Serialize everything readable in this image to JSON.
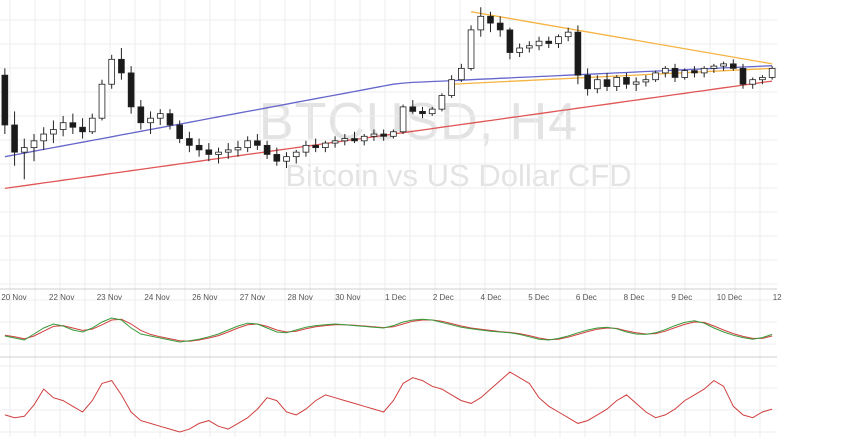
{
  "watermark": {
    "symbol": "BTCUSD, H4",
    "name": "Bitcoin vs US Dollar CFD"
  },
  "colors": {
    "up_candle": "#ffffff",
    "down_candle": "#1a1a1a",
    "wick": "#222222",
    "ma_short": "#6666cc",
    "ma_long": "#e05555",
    "trendline": "#f5b342",
    "stoch_k": "#3a9a3a",
    "stoch_d": "#d04040",
    "rsi": "#d04040",
    "grid": "#ececec",
    "separator": "#cfcfcf"
  },
  "chart_data": [
    {
      "type": "candlestick",
      "title": "",
      "x_ticks": [
        "20 Nov",
        "22 Nov",
        "23 Nov",
        "24 Nov",
        "26 Nov",
        "27 Nov",
        "28 Nov",
        "30 Nov",
        "1 Dec",
        "2 Dec",
        "4 Dec",
        "5 Dec",
        "6 Dec",
        "8 Dec",
        "9 Dec",
        "10 Dec",
        "12"
      ],
      "ohlc": [
        [
          8120,
          8150,
          7860,
          7900
        ],
        [
          7900,
          7960,
          7720,
          7780
        ],
        [
          7780,
          7840,
          7660,
          7800
        ],
        [
          7800,
          7860,
          7740,
          7830
        ],
        [
          7830,
          7890,
          7790,
          7860
        ],
        [
          7860,
          7920,
          7820,
          7880
        ],
        [
          7880,
          7940,
          7850,
          7910
        ],
        [
          7910,
          7950,
          7860,
          7890
        ],
        [
          7890,
          7930,
          7840,
          7870
        ],
        [
          7870,
          7950,
          7860,
          7930
        ],
        [
          7930,
          8100,
          7920,
          8080
        ],
        [
          8080,
          8210,
          8060,
          8190
        ],
        [
          8190,
          8240,
          8100,
          8130
        ],
        [
          8130,
          8160,
          7950,
          7980
        ],
        [
          7980,
          8010,
          7880,
          7910
        ],
        [
          7910,
          7960,
          7860,
          7930
        ],
        [
          7930,
          7970,
          7900,
          7950
        ],
        [
          7950,
          7970,
          7880,
          7900
        ],
        [
          7900,
          7920,
          7820,
          7840
        ],
        [
          7840,
          7870,
          7780,
          7810
        ],
        [
          7810,
          7840,
          7760,
          7790
        ],
        [
          7790,
          7820,
          7740,
          7770
        ],
        [
          7770,
          7800,
          7730,
          7780
        ],
        [
          7780,
          7820,
          7750,
          7790
        ],
        [
          7790,
          7830,
          7760,
          7800
        ],
        [
          7800,
          7850,
          7780,
          7830
        ],
        [
          7830,
          7860,
          7790,
          7810
        ],
        [
          7810,
          7830,
          7750,
          7770
        ],
        [
          7770,
          7800,
          7720,
          7740
        ],
        [
          7740,
          7780,
          7710,
          7760
        ],
        [
          7760,
          7790,
          7730,
          7780
        ],
        [
          7780,
          7830,
          7760,
          7810
        ],
        [
          7810,
          7840,
          7780,
          7800
        ],
        [
          7800,
          7830,
          7780,
          7820
        ],
        [
          7820,
          7850,
          7800,
          7830
        ],
        [
          7830,
          7860,
          7810,
          7840
        ],
        [
          7840,
          7870,
          7820,
          7830
        ],
        [
          7830,
          7860,
          7810,
          7850
        ],
        [
          7850,
          7880,
          7830,
          7860
        ],
        [
          7860,
          7880,
          7830,
          7850
        ],
        [
          7850,
          7880,
          7840,
          7870
        ],
        [
          7870,
          7990,
          7860,
          7980
        ],
        [
          7980,
          8010,
          7950,
          7960
        ],
        [
          7960,
          7980,
          7930,
          7950
        ],
        [
          7950,
          7980,
          7940,
          7970
        ],
        [
          7970,
          8040,
          7960,
          8030
        ],
        [
          8030,
          8120,
          8020,
          8100
        ],
        [
          8100,
          8170,
          8090,
          8150
        ],
        [
          8150,
          8340,
          8140,
          8320
        ],
        [
          8320,
          8420,
          8290,
          8380
        ],
        [
          8380,
          8400,
          8310,
          8350
        ],
        [
          8350,
          8380,
          8290,
          8320
        ],
        [
          8320,
          8330,
          8190,
          8220
        ],
        [
          8220,
          8260,
          8200,
          8240
        ],
        [
          8240,
          8270,
          8220,
          8250
        ],
        [
          8250,
          8290,
          8230,
          8270
        ],
        [
          8270,
          8290,
          8240,
          8260
        ],
        [
          8260,
          8300,
          8240,
          8290
        ],
        [
          8290,
          8330,
          8270,
          8310
        ],
        [
          8310,
          8340,
          8080,
          8120
        ],
        [
          8120,
          8150,
          8030,
          8060
        ],
        [
          8060,
          8120,
          8040,
          8100
        ],
        [
          8100,
          8130,
          8050,
          8070
        ],
        [
          8070,
          8120,
          8050,
          8110
        ],
        [
          8110,
          8130,
          8060,
          8080
        ],
        [
          8080,
          8110,
          8050,
          8090
        ],
        [
          8090,
          8120,
          8070,
          8100
        ],
        [
          8100,
          8140,
          8090,
          8130
        ],
        [
          8130,
          8160,
          8110,
          8150
        ],
        [
          8150,
          8170,
          8090,
          8110
        ],
        [
          8110,
          8150,
          8100,
          8140
        ],
        [
          8140,
          8160,
          8110,
          8130
        ],
        [
          8130,
          8160,
          8110,
          8150
        ],
        [
          8150,
          8170,
          8130,
          8160
        ],
        [
          8160,
          8180,
          8140,
          8170
        ],
        [
          8170,
          8190,
          8140,
          8150
        ],
        [
          8150,
          8170,
          8060,
          8080
        ],
        [
          8080,
          8110,
          8060,
          8100
        ],
        [
          8100,
          8120,
          8080,
          8110
        ],
        [
          8110,
          8160,
          8100,
          8150
        ]
      ],
      "ma_short": [
        7760,
        7768,
        7776,
        7784,
        7792,
        7800,
        7808,
        7816,
        7824,
        7832,
        7840,
        7848,
        7856,
        7864,
        7872,
        7880,
        7888,
        7896,
        7904,
        7912,
        7920,
        7928,
        7936,
        7944,
        7952,
        7960,
        7968,
        7976,
        7984,
        7992,
        8000,
        8008,
        8016,
        8024,
        8032,
        8040,
        8048,
        8056,
        8064,
        8072,
        8080,
        8085,
        8088,
        8090,
        8092,
        8094,
        8096,
        8098,
        8100,
        8102,
        8104,
        8106,
        8108,
        8110,
        8112,
        8114,
        8116,
        8118,
        8120,
        8122,
        8124,
        8126,
        8128,
        8130,
        8132,
        8134,
        8136,
        8138,
        8140,
        8142,
        8144,
        8146,
        8148,
        8150,
        8152,
        8154,
        8156,
        8158,
        8160,
        8162
      ],
      "ma_long": [
        7620,
        7626,
        7632,
        7638,
        7644,
        7650,
        7656,
        7662,
        7668,
        7674,
        7680,
        7686,
        7692,
        7698,
        7704,
        7710,
        7716,
        7722,
        7728,
        7734,
        7740,
        7746,
        7752,
        7758,
        7764,
        7770,
        7776,
        7782,
        7788,
        7794,
        7800,
        7806,
        7812,
        7818,
        7824,
        7830,
        7836,
        7842,
        7848,
        7854,
        7860,
        7866,
        7872,
        7878,
        7884,
        7890,
        7896,
        7902,
        7908,
        7914,
        7920,
        7926,
        7932,
        7938,
        7944,
        7950,
        7956,
        7962,
        7968,
        7974,
        7980,
        7986,
        7992,
        7998,
        8004,
        8010,
        8016,
        8022,
        8028,
        8034,
        8040,
        8046,
        8052,
        8058,
        8064,
        8070,
        8076,
        8082,
        8088,
        8094
      ],
      "trendlines": [
        {
          "from_index": 48,
          "from_value": 8400,
          "to_index": 79,
          "to_value": 8170
        },
        {
          "from_index": 46,
          "from_value": 8080,
          "to_index": 79,
          "to_value": 8150
        }
      ]
    },
    {
      "type": "line",
      "title": "",
      "ylim": [
        0,
        100
      ],
      "series": [
        {
          "values": [
            40,
            35,
            30,
            45,
            60,
            70,
            65,
            55,
            50,
            60,
            75,
            85,
            80,
            60,
            45,
            40,
            35,
            30,
            25,
            28,
            32,
            38,
            45,
            55,
            65,
            72,
            70,
            60,
            50,
            48,
            55,
            62,
            66,
            68,
            70,
            68,
            66,
            64,
            62,
            60,
            66,
            75,
            80,
            82,
            80,
            74,
            68,
            62,
            58,
            55,
            52,
            50,
            48,
            44,
            38,
            32,
            30,
            34,
            40,
            48,
            55,
            60,
            62,
            58,
            50,
            45,
            44,
            48,
            56,
            66,
            74,
            78,
            72,
            60,
            50,
            42,
            36,
            32,
            36,
            44
          ]
        },
        {
          "values": [
            42,
            38,
            33,
            40,
            52,
            64,
            66,
            60,
            54,
            57,
            68,
            80,
            82,
            70,
            54,
            44,
            38,
            33,
            28,
            27,
            30,
            35,
            41,
            50,
            60,
            68,
            70,
            64,
            55,
            50,
            52,
            58,
            63,
            66,
            68,
            68,
            67,
            65,
            63,
            61,
            63,
            70,
            77,
            80,
            80,
            77,
            71,
            65,
            60,
            57,
            54,
            51,
            49,
            46,
            41,
            35,
            31,
            32,
            37,
            44,
            51,
            57,
            60,
            59,
            53,
            48,
            45,
            46,
            52,
            61,
            69,
            75,
            74,
            65,
            55,
            46,
            39,
            34,
            34,
            40
          ]
        }
      ]
    },
    {
      "type": "line",
      "title": "",
      "series": [
        {
          "values": [
            48,
            46,
            47,
            55,
            66,
            60,
            58,
            54,
            50,
            58,
            70,
            72,
            62,
            50,
            44,
            42,
            40,
            38,
            36,
            38,
            42,
            44,
            40,
            38,
            42,
            46,
            52,
            60,
            58,
            50,
            48,
            52,
            58,
            62,
            60,
            58,
            56,
            54,
            52,
            50,
            58,
            70,
            74,
            72,
            68,
            66,
            62,
            58,
            56,
            60,
            66,
            72,
            78,
            74,
            70,
            60,
            54,
            50,
            46,
            42,
            44,
            48,
            52,
            58,
            62,
            56,
            50,
            46,
            48,
            52,
            58,
            62,
            66,
            72,
            68,
            54,
            48,
            46,
            50,
            52
          ]
        }
      ]
    }
  ]
}
